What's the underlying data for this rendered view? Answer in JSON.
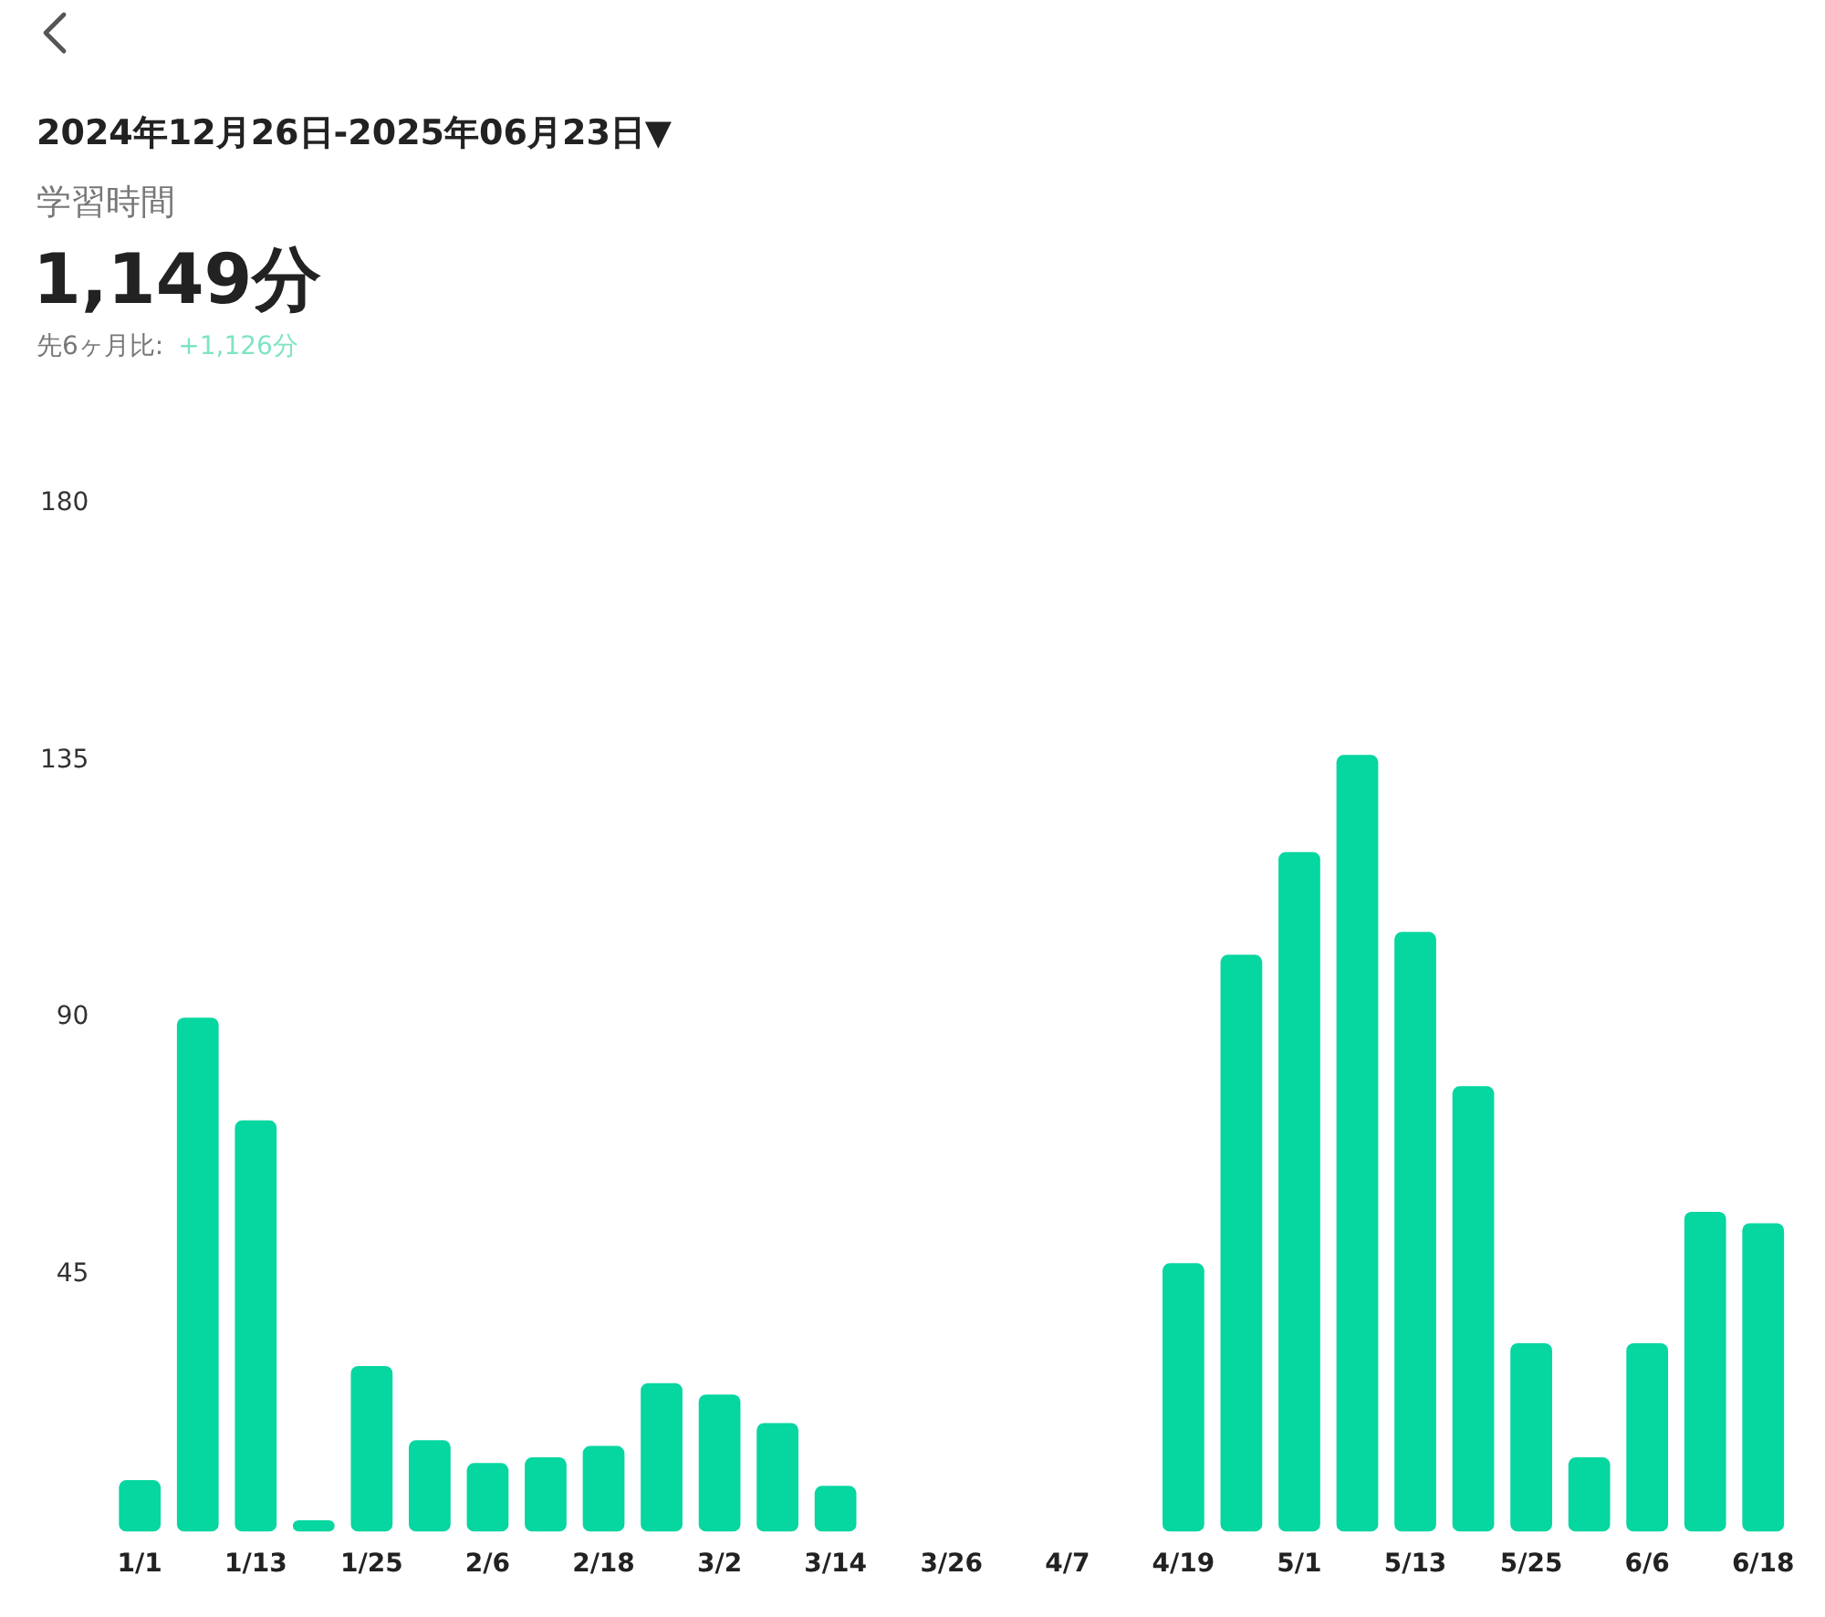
{
  "chart_data": {
    "type": "bar",
    "subtitle": "2024年12月26日-2025年06月23日▼",
    "annotations": [
      "学習時間",
      "1,149分",
      "先6ヶ月比:",
      "+1,126分"
    ],
    "categories": [
      "1/1",
      null,
      "1/13",
      null,
      "1/25",
      null,
      "2/6",
      null,
      "2/18",
      null,
      "3/2",
      null,
      "3/14",
      null,
      "3/26",
      null,
      "4/7",
      null,
      "4/19",
      null,
      "5/1",
      null,
      "5/13",
      null,
      "5/25",
      null,
      "6/6",
      null,
      "6/18"
    ],
    "values": [
      9,
      90,
      72,
      2,
      29,
      16,
      12,
      13,
      15,
      26,
      24,
      19,
      8,
      0,
      0,
      0,
      0,
      0,
      47,
      101,
      119,
      136,
      105,
      78,
      33,
      13,
      33,
      56,
      54
    ],
    "color": "#06d6a0",
    "ylim": [
      0,
      180
    ],
    "yticks": [
      45,
      90,
      135,
      180
    ],
    "grid": false,
    "legend": false
  }
}
